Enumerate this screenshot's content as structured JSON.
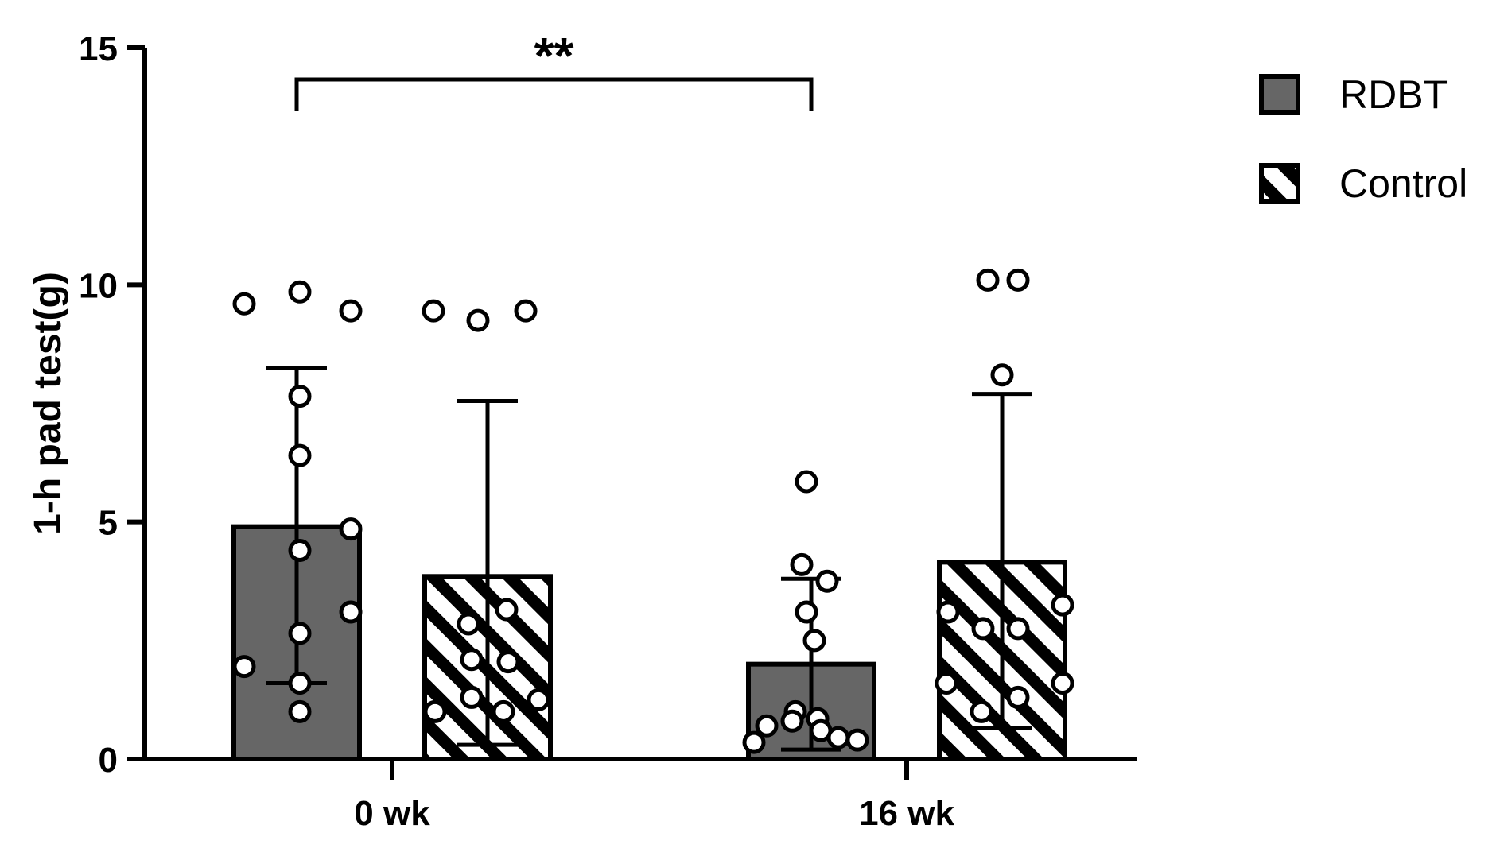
{
  "chart_data": {
    "type": "bar",
    "ylabel": "1-h pad test(g)",
    "xlabel": "",
    "ylim": [
      0,
      15
    ],
    "yticks": [
      0,
      5,
      10,
      15
    ],
    "categories": [
      "0 wk",
      "16 wk"
    ],
    "grid": false,
    "legend_position": "top-right",
    "series": [
      {
        "name": "RDBT",
        "fill": "solid",
        "color": "#666666",
        "values": [
          4.9,
          2.0
        ],
        "error_low": [
          1.6,
          0.2
        ],
        "error_high": [
          8.25,
          3.8
        ],
        "points": [
          [
            9.6,
            9.85,
            9.45,
            7.65,
            6.4,
            4.85,
            4.4,
            3.1,
            2.65,
            1.95,
            1.6,
            1.0
          ],
          [
            5.85,
            4.1,
            3.75,
            3.1,
            2.5,
            1.0,
            0.85,
            0.8,
            0.7,
            0.6,
            0.45,
            0.4,
            0.35
          ]
        ]
      },
      {
        "name": "Control",
        "fill": "hatched",
        "color": "#ffffff",
        "values": [
          3.85,
          4.15
        ],
        "error_low": [
          0.3,
          0.65
        ],
        "error_high": [
          7.55,
          7.7
        ],
        "points": [
          [
            9.45,
            9.25,
            9.45,
            3.15,
            2.85,
            2.1,
            2.05,
            1.3,
            1.0,
            1.0,
            1.25
          ],
          [
            10.1,
            10.1,
            8.1,
            3.25,
            3.1,
            2.75,
            2.75,
            1.6,
            1.6,
            1.3,
            1.0
          ]
        ]
      }
    ],
    "annotations": [
      {
        "text": "**",
        "from_category": "0 wk",
        "to_category": "16 wk",
        "series": "RDBT"
      }
    ]
  }
}
